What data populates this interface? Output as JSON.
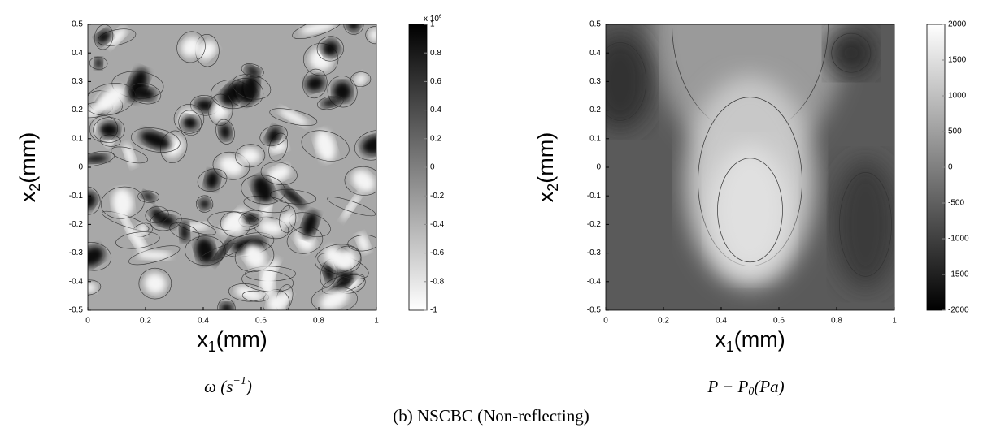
{
  "chart_data": [
    {
      "type": "contour",
      "xlabel": {
        "main": "x",
        "sub": "1",
        "unit": "(mm)"
      },
      "ylabel": {
        "main": "x",
        "sub": "2",
        "unit": "(mm)"
      },
      "xlim": [
        0,
        1
      ],
      "xticks": [
        0,
        0.2,
        0.4,
        0.6,
        0.8,
        1
      ],
      "ylim": [
        -0.5,
        0.5
      ],
      "yticks": [
        -0.5,
        -0.4,
        -0.3,
        -0.2,
        -0.1,
        0,
        0.1,
        0.2,
        0.3,
        0.4,
        0.5
      ],
      "colorbar_lim": [
        -1,
        1
      ],
      "colorbar_ticks": [
        -1,
        -0.8,
        -0.6,
        -0.4,
        -0.2,
        0,
        0.2,
        0.4,
        0.6,
        0.8,
        1
      ],
      "colorbar_scale": {
        "base": "x 10",
        "exponent": "6"
      },
      "colorbar_colors": {
        "low": "#ffffff",
        "high": "#000000"
      },
      "caption": {
        "pre": "ω (s",
        "sup": "−1",
        "post": ")"
      }
    },
    {
      "type": "contour",
      "xlabel": {
        "main": "x",
        "sub": "1",
        "unit": "(mm)"
      },
      "ylabel": {
        "main": "x",
        "sub": "2",
        "unit": "(mm)"
      },
      "xlim": [
        0,
        1
      ],
      "xticks": [
        0,
        0.2,
        0.4,
        0.6,
        0.8,
        1
      ],
      "ylim": [
        -0.5,
        0.5
      ],
      "yticks": [
        -0.5,
        -0.4,
        -0.3,
        -0.2,
        -0.1,
        0,
        0.1,
        0.2,
        0.3,
        0.4,
        0.5
      ],
      "colorbar_lim": [
        -2000,
        2000
      ],
      "colorbar_ticks": [
        -2000,
        -1500,
        -1000,
        -500,
        0,
        500,
        1000,
        1500,
        2000
      ],
      "colorbar_colors": {
        "low": "#000000",
        "high": "#ffffff"
      },
      "caption": {
        "pre": "P − P",
        "sub": "0",
        "post": "(Pa)"
      }
    }
  ],
  "figure_caption": "(b) NSCBC (Non-reflecting)"
}
